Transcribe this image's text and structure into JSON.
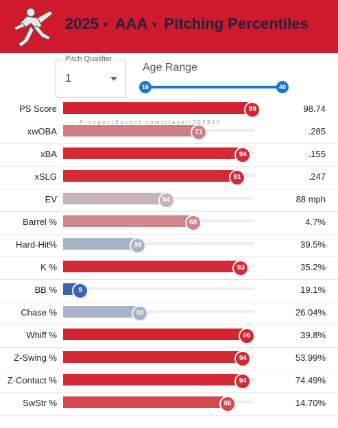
{
  "header": {
    "year": "2025",
    "level": "AAA",
    "title": "Pitching Percentiles",
    "colors": {
      "background": "#cf1a2e",
      "text": "#1f2140"
    }
  },
  "controls": {
    "pitch_qualifier": {
      "label": "Pitch Qualifier",
      "value": "1"
    },
    "age_range": {
      "label": "Age Range",
      "min": "16",
      "max": "40"
    }
  },
  "watermark": "ProspectSavant.com/player/702910",
  "metrics": [
    {
      "label": "PS Score",
      "percentile": 99,
      "value": "98.74",
      "color": "#d2232f"
    },
    {
      "label": "xwOBA",
      "percentile": 71,
      "value": ".285",
      "color": "#cf7f84"
    },
    {
      "label": "xBA",
      "percentile": 94,
      "value": ".155",
      "color": "#d42a36"
    },
    {
      "label": "xSLG",
      "percentile": 91,
      "value": ".247",
      "color": "#d42a36"
    },
    {
      "label": "EV",
      "percentile": 54,
      "value": "88 mph",
      "color": "#c5b3b7"
    },
    {
      "label": "Barrel %",
      "percentile": 68,
      "value": "4.7%",
      "color": "#ce868b"
    },
    {
      "label": "Hard-Hit%",
      "percentile": 39,
      "value": "39.5%",
      "color": "#a8b3c6"
    },
    {
      "label": "K %",
      "percentile": 93,
      "value": "35.2%",
      "color": "#d42a36"
    },
    {
      "label": "BB %",
      "percentile": 9,
      "value": "19.1%",
      "color": "#3c66b0"
    },
    {
      "label": "Chase %",
      "percentile": 40,
      "value": "26.04%",
      "color": "#a8b3c6"
    },
    {
      "label": "Whiff %",
      "percentile": 96,
      "value": "39.8%",
      "color": "#d2232f"
    },
    {
      "label": "Z-Swing %",
      "percentile": 94,
      "value": "53.99%",
      "color": "#d42a36"
    },
    {
      "label": "Z-Contact %",
      "percentile": 94,
      "value": "74.49%",
      "color": "#d42a36"
    },
    {
      "label": "SwStr %",
      "percentile": 86,
      "value": "14.70%",
      "color": "#d4474f"
    }
  ]
}
